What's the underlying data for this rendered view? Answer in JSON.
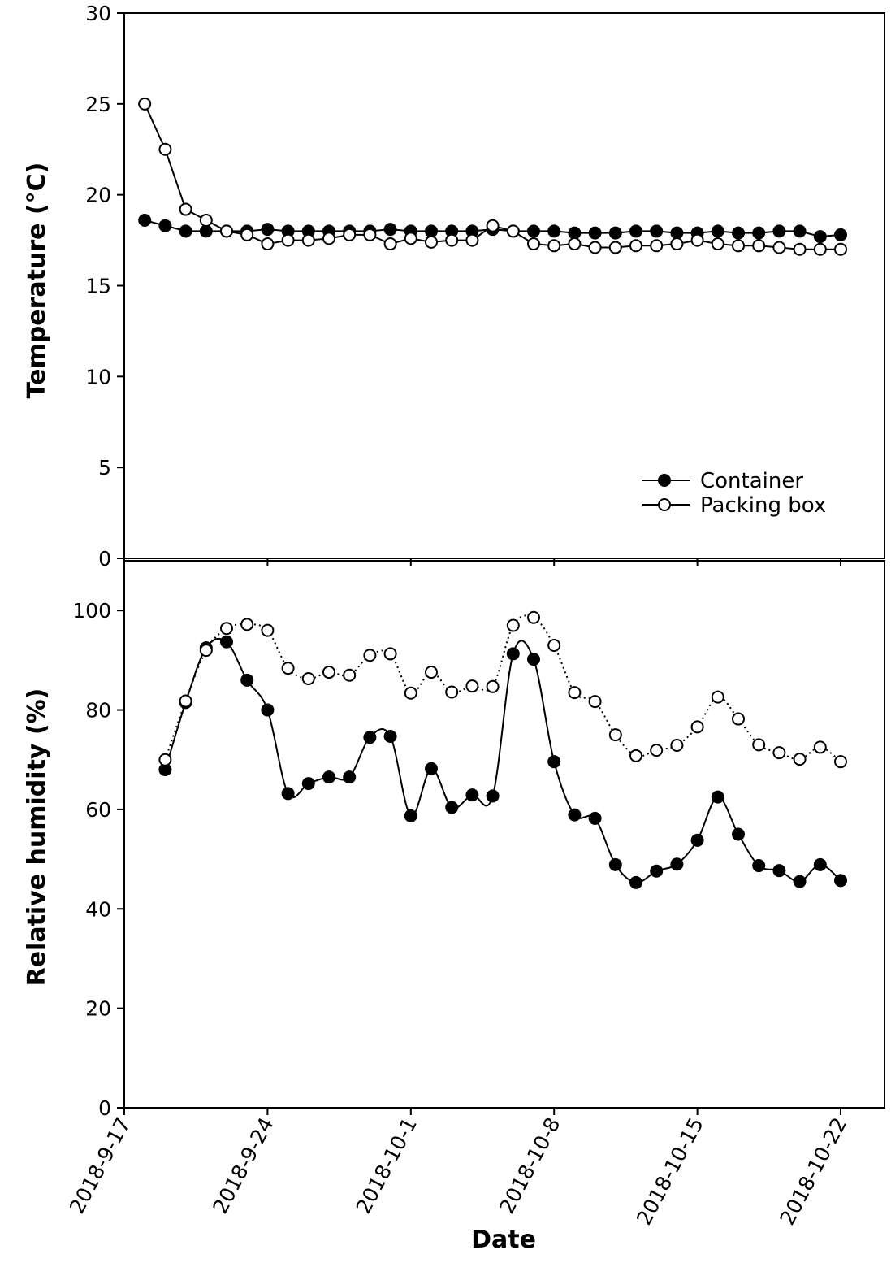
{
  "chart_data": [
    {
      "type": "line",
      "panel": "top",
      "ylabel": "Temperature (°C)",
      "ylim": [
        0,
        30
      ],
      "yticks": [
        0,
        5,
        10,
        15,
        20,
        25,
        30
      ],
      "legend": {
        "placement": "bottom-right",
        "entries": [
          "Container",
          "Packing box"
        ]
      },
      "series": [
        {
          "name": "Container",
          "marker": "filled-circle",
          "x": [
            "2018-09-18",
            "2018-09-19",
            "2018-09-20",
            "2018-09-21",
            "2018-09-22",
            "2018-09-23",
            "2018-09-24",
            "2018-09-25",
            "2018-09-26",
            "2018-09-27",
            "2018-09-28",
            "2018-09-29",
            "2018-09-30",
            "2018-10-01",
            "2018-10-02",
            "2018-10-03",
            "2018-10-04",
            "2018-10-05",
            "2018-10-06",
            "2018-10-07",
            "2018-10-08",
            "2018-10-09",
            "2018-10-10",
            "2018-10-11",
            "2018-10-12",
            "2018-10-13",
            "2018-10-14",
            "2018-10-15",
            "2018-10-16",
            "2018-10-17",
            "2018-10-18",
            "2018-10-19",
            "2018-10-20",
            "2018-10-21",
            "2018-10-22"
          ],
          "values": [
            18.6,
            18.3,
            18.0,
            18.0,
            18.0,
            18.0,
            18.1,
            18.0,
            18.0,
            18.0,
            18.0,
            18.0,
            18.1,
            18.0,
            18.0,
            18.0,
            18.0,
            18.1,
            18.0,
            18.0,
            18.0,
            17.9,
            17.9,
            17.9,
            18.0,
            18.0,
            17.9,
            17.9,
            18.0,
            17.9,
            17.9,
            18.0,
            18.0,
            17.7,
            17.8
          ]
        },
        {
          "name": "Packing box",
          "marker": "open-circle",
          "x": [
            "2018-09-18",
            "2018-09-19",
            "2018-09-20",
            "2018-09-21",
            "2018-09-22",
            "2018-09-23",
            "2018-09-24",
            "2018-09-25",
            "2018-09-26",
            "2018-09-27",
            "2018-09-28",
            "2018-09-29",
            "2018-09-30",
            "2018-10-01",
            "2018-10-02",
            "2018-10-03",
            "2018-10-04",
            "2018-10-05",
            "2018-10-06",
            "2018-10-07",
            "2018-10-08",
            "2018-10-09",
            "2018-10-10",
            "2018-10-11",
            "2018-10-12",
            "2018-10-13",
            "2018-10-14",
            "2018-10-15",
            "2018-10-16",
            "2018-10-17",
            "2018-10-18",
            "2018-10-19",
            "2018-10-20",
            "2018-10-21",
            "2018-10-22"
          ],
          "values": [
            25.0,
            22.5,
            19.2,
            18.6,
            18.0,
            17.8,
            17.3,
            17.5,
            17.5,
            17.6,
            17.8,
            17.8,
            17.3,
            17.6,
            17.4,
            17.5,
            17.5,
            18.3,
            18.0,
            17.3,
            17.2,
            17.3,
            17.1,
            17.1,
            17.2,
            17.2,
            17.3,
            17.5,
            17.3,
            17.2,
            17.2,
            17.1,
            17.0,
            17.0,
            17.0
          ]
        }
      ]
    },
    {
      "type": "line",
      "panel": "bottom",
      "xlabel": "Date",
      "ylabel": "Relative humidity (%)",
      "ylim": [
        0,
        110
      ],
      "yticks": [
        0,
        20,
        40,
        60,
        80,
        100
      ],
      "xticks": [
        "2018-9-17",
        "2018-9-24",
        "2018-10-1",
        "2018-10-8",
        "2018-10-15",
        "2018-10-22"
      ],
      "series": [
        {
          "name": "Container",
          "marker": "filled-circle",
          "line_style": "solid",
          "x": [
            "2018-09-19",
            "2018-09-20",
            "2018-09-21",
            "2018-09-22",
            "2018-09-23",
            "2018-09-24",
            "2018-09-25",
            "2018-09-26",
            "2018-09-27",
            "2018-09-28",
            "2018-09-29",
            "2018-09-30",
            "2018-10-01",
            "2018-10-02",
            "2018-10-03",
            "2018-10-04",
            "2018-10-05",
            "2018-10-06",
            "2018-10-07",
            "2018-10-08",
            "2018-10-09",
            "2018-10-10",
            "2018-10-11",
            "2018-10-12",
            "2018-10-13",
            "2018-10-14",
            "2018-10-15",
            "2018-10-16",
            "2018-10-17",
            "2018-10-18",
            "2018-10-19",
            "2018-10-20",
            "2018-10-21",
            "2018-10-22"
          ],
          "values": [
            68,
            81.5,
            92.5,
            93.7,
            86,
            80,
            63.2,
            65.2,
            66.5,
            66.5,
            74.5,
            74.7,
            58.7,
            68.2,
            60.4,
            62.9,
            62.7,
            91.3,
            90.2,
            69.6,
            58.9,
            58.2,
            48.9,
            45.3,
            47.6,
            49,
            53.8,
            62.5,
            55,
            48.7,
            47.7,
            45.5,
            48.9,
            45.7
          ]
        },
        {
          "name": "Packing box",
          "marker": "open-circle",
          "line_style": "dotted",
          "x": [
            "2018-09-19",
            "2018-09-20",
            "2018-09-21",
            "2018-09-22",
            "2018-09-23",
            "2018-09-24",
            "2018-09-25",
            "2018-09-26",
            "2018-09-27",
            "2018-09-28",
            "2018-09-29",
            "2018-09-30",
            "2018-10-01",
            "2018-10-02",
            "2018-10-03",
            "2018-10-04",
            "2018-10-05",
            "2018-10-06",
            "2018-10-07",
            "2018-10-08",
            "2018-10-09",
            "2018-10-10",
            "2018-10-11",
            "2018-10-12",
            "2018-10-13",
            "2018-10-14",
            "2018-10-15",
            "2018-10-16",
            "2018-10-17",
            "2018-10-18",
            "2018-10-19",
            "2018-10-20",
            "2018-10-21",
            "2018-10-22"
          ],
          "values": [
            70,
            81.8,
            92,
            96.4,
            97.2,
            96,
            88.4,
            86.3,
            87.6,
            87,
            91,
            91.3,
            83.4,
            87.6,
            83.6,
            84.8,
            84.7,
            97,
            98.6,
            93,
            83.5,
            81.7,
            75,
            70.8,
            71.9,
            72.9,
            76.6,
            82.6,
            78.2,
            73,
            71.4,
            70.1,
            72.5,
            69.6
          ]
        }
      ]
    }
  ]
}
